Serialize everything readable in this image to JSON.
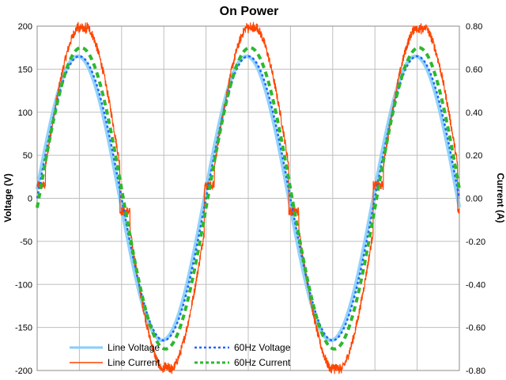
{
  "chart_data": {
    "type": "line",
    "title": "On Power",
    "ylabel": "Voltage (V)",
    "y2label": "Current (A)",
    "ylim": [
      -200,
      200
    ],
    "y2lim": [
      -0.8,
      0.8
    ],
    "yticks": [
      200,
      150,
      100,
      50,
      0,
      -50,
      -100,
      -150,
      -200
    ],
    "y2ticks": [
      "0.80",
      "0.60",
      "0.40",
      "0.20",
      "0.00",
      "-0.20",
      "-0.40",
      "-0.60",
      "-0.80"
    ],
    "grid": "horizontal",
    "x_grid": "vertical lines at 10% intervals",
    "legend_position": "bottom-left",
    "x_range_cycles": [
      0,
      2.5
    ],
    "series": [
      {
        "name": "Line Voltage",
        "axis": "left",
        "color": "#87CEFA",
        "style": "solid-thick",
        "waveform": "sine",
        "amplitude": 165,
        "phase_cycles": -0.01
      },
      {
        "name": "Line Current",
        "axis": "right",
        "color": "#FF4500",
        "style": "solid-noisy",
        "waveform": "distorted sine, flat-top peaks with small step near zero crossing",
        "amplitude": 0.75,
        "peak": 0.8,
        "phase_cycles": 0.02
      },
      {
        "name": "60Hz Voltage",
        "axis": "left",
        "color": "#1E64FF",
        "style": "dotted",
        "waveform": "sine",
        "amplitude": 165,
        "phase_cycles": 0.0
      },
      {
        "name": "60Hz Current",
        "axis": "right",
        "color": "#2EB82E",
        "style": "dashed",
        "waveform": "sine",
        "amplitude": 0.7,
        "phase_cycles": 0.01
      }
    ]
  },
  "legend": {
    "items": [
      {
        "label": "Line Voltage"
      },
      {
        "label": "60Hz Voltage"
      },
      {
        "label": "Line Current"
      },
      {
        "label": "60Hz Current"
      }
    ]
  }
}
